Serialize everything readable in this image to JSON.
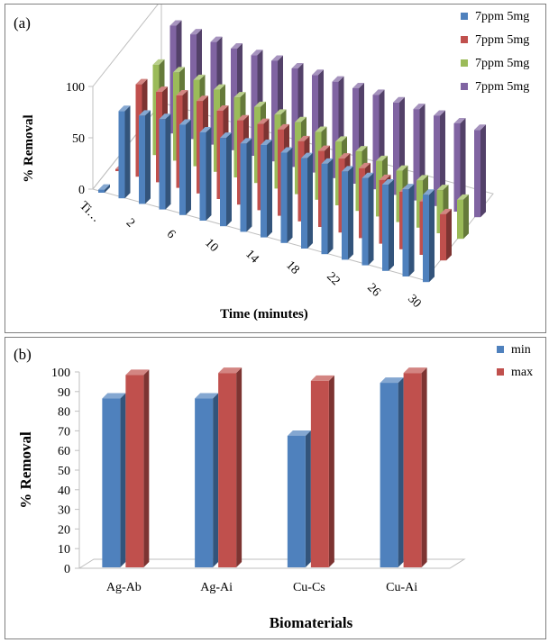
{
  "chart_data": [
    {
      "panel_label": "(a)",
      "type": "bar",
      "subtype": "3d-clustered-column",
      "title": "",
      "xlabel": "Time (minutes)",
      "ylabel": "% Removal",
      "ylim": [
        0,
        100
      ],
      "yticks": [
        0,
        50,
        100
      ],
      "categories": [
        "Ti…",
        "",
        "2",
        "",
        "6",
        "",
        "10",
        "",
        "14",
        "",
        "18",
        "",
        "22",
        "",
        "26",
        "",
        "30"
      ],
      "category_labels": [
        "Ti…",
        "2",
        "6",
        "10",
        "14",
        "18",
        "22",
        "26",
        "30"
      ],
      "grid": false,
      "legend": "right",
      "series": [
        {
          "name": "7ppm 5mg",
          "color": "#4f81bd",
          "values": [
            3,
            85,
            86,
            88,
            88,
            86,
            86,
            86,
            90,
            88,
            88,
            88,
            86,
            85,
            84,
            85,
            85
          ]
        },
        {
          "name": "7ppm 5mg",
          "color": "#c0504d",
          "values": [
            2,
            90,
            88,
            90,
            90,
            86,
            82,
            84,
            84,
            78,
            74,
            72,
            68,
            62,
            56,
            52,
            45
          ]
        },
        {
          "name": "7ppm 5mg",
          "color": "#9bbb59",
          "values": [
            0,
            88,
            86,
            84,
            80,
            78,
            74,
            72,
            70,
            66,
            62,
            58,
            54,
            50,
            46,
            42,
            38
          ]
        },
        {
          "name": "7ppm 5mg",
          "color": "#8064a2",
          "values": [
            0,
            105,
            102,
            100,
            99,
            98,
            98,
            96,
            95,
            94,
            93,
            92,
            90,
            89,
            88,
            86,
            85
          ]
        }
      ]
    },
    {
      "panel_label": "(b)",
      "type": "bar",
      "subtype": "3d-clustered-column",
      "title": "",
      "xlabel": "Biomaterials",
      "ylabel": "% Removal",
      "ylim": [
        0,
        100
      ],
      "yticks": [
        0,
        10,
        20,
        30,
        40,
        50,
        60,
        70,
        80,
        90,
        100
      ],
      "categories": [
        "Ag-Ab",
        "Ag-Ai",
        "Cu-Cs",
        "Cu-Ai"
      ],
      "grid": false,
      "legend": "top-right",
      "series": [
        {
          "name": "min",
          "color": "#4f81bd",
          "values": [
            86,
            86,
            67,
            94
          ]
        },
        {
          "name": "max",
          "color": "#c0504d",
          "values": [
            98,
            99,
            95,
            99
          ]
        }
      ]
    }
  ]
}
